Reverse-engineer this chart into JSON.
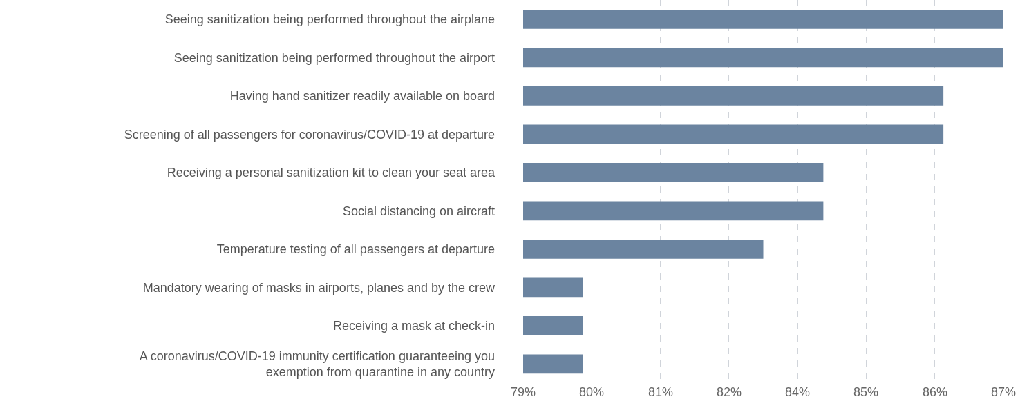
{
  "chart_data": {
    "type": "bar",
    "orientation": "horizontal",
    "categories": [
      "Seeing sanitization being performed throughout the airplane",
      "Seeing sanitization being performed throughout the airport",
      "Having hand sanitizer readily available on board",
      "Screening of all passengers for coronavirus/COVID-19 at departure",
      "Receiving a personal sanitization kit to clean your seat area",
      "Social distancing on aircraft",
      "Temperature testing of all passengers at departure",
      "Mandatory wearing of masks in airports, planes and by the crew",
      "Receiving a mask at check-in",
      "A coronavirus/COVID-19 immunity certification guaranteeing you\nexemption from quarantine in any country"
    ],
    "values": [
      87,
      87,
      86,
      86,
      84,
      84,
      83,
      80,
      80,
      80
    ],
    "color": "#6b84a0",
    "xlim": [
      79,
      87
    ],
    "xticks": [
      {
        "value": 79,
        "label": "79%"
      },
      {
        "value": 80.14,
        "label": "80%"
      },
      {
        "value": 81.29,
        "label": "81%"
      },
      {
        "value": 82.43,
        "label": "82%"
      },
      {
        "value": 83.57,
        "label": "84%"
      },
      {
        "value": 84.71,
        "label": "85%"
      },
      {
        "value": 85.86,
        "label": "86%"
      },
      {
        "value": 87,
        "label": "87%"
      }
    ],
    "grid": "x",
    "legend": false
  }
}
